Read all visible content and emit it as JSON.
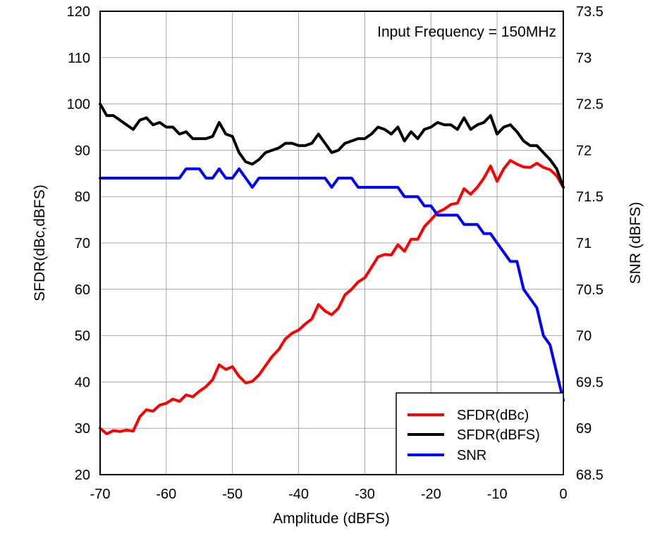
{
  "chart_data": {
    "type": "line",
    "annotation": "Input Frequency = 150MHz",
    "xlabel": "Amplitude (dBFS)",
    "ylabel": "SFDR(dBc,dBFS)",
    "y2label": "SNR (dBFS)",
    "xlim": [
      -70,
      0
    ],
    "ylim": [
      20,
      120
    ],
    "y2lim": [
      68.5,
      73.5
    ],
    "xticks": [
      -70,
      -60,
      -50,
      -40,
      -30,
      -20,
      -10,
      0
    ],
    "yticks": [
      20,
      30,
      40,
      50,
      60,
      70,
      80,
      90,
      100,
      110,
      120
    ],
    "y2ticks": [
      "68.5",
      "69",
      "69.5",
      "70",
      "70.5",
      "71",
      "71.5",
      "72",
      "72.5",
      "73",
      "73.5"
    ],
    "grid": true,
    "legend_position": "bottom-right",
    "x": [
      -70,
      -69,
      -68,
      -67,
      -66,
      -65,
      -64,
      -63,
      -62,
      -61,
      -60,
      -59,
      -58,
      -57,
      -56,
      -55,
      -54,
      -53,
      -52,
      -51,
      -50,
      -49,
      -48,
      -47,
      -46,
      -45,
      -44,
      -43,
      -42,
      -41,
      -40,
      -39,
      -38,
      -37,
      -36,
      -35,
      -34,
      -33,
      -32,
      -31,
      -30,
      -29,
      -28,
      -27,
      -26,
      -25,
      -24,
      -23,
      -22,
      -21,
      -20,
      -19,
      -18,
      -17,
      -16,
      -15,
      -14,
      -13,
      -12,
      -11,
      -10,
      -9,
      -8,
      -7,
      -6,
      -5,
      -4,
      -3,
      -2,
      -1,
      0
    ],
    "series": [
      {
        "name": "SFDR(dBc)",
        "color": "#ff0000",
        "axis": "left",
        "values": [
          30,
          28.8,
          29.5,
          29.3,
          29.6,
          29.4,
          32.5,
          34,
          33.7,
          35,
          35.4,
          36.3,
          35.8,
          37.2,
          36.8,
          38,
          39,
          40.5,
          43.7,
          42.7,
          43.3,
          41.2,
          39.8,
          40.1,
          41.5,
          43.5,
          45.5,
          47,
          49.3,
          50.5,
          51.2,
          52.5,
          53.6,
          56.7,
          55.3,
          54.5,
          55.9,
          58.8,
          60,
          61.6,
          62.5,
          64.7,
          67,
          67.5,
          67.4,
          69.6,
          68.2,
          70.8,
          70.8,
          73.5,
          75,
          76.6,
          77.3,
          78.3,
          78.6,
          81.7,
          80.5,
          82,
          84,
          86.6,
          83.3,
          86,
          87.8,
          87,
          86.4,
          86.3,
          87.2,
          86.3,
          85.8,
          84.5,
          82
        ]
      },
      {
        "name": "SFDR(dBFS)",
        "color": "#000000",
        "axis": "left",
        "values": [
          100,
          97.5,
          97.5,
          96.5,
          95.5,
          94.5,
          96.5,
          97,
          95.5,
          96,
          95,
          95,
          93.5,
          94,
          92.5,
          92.5,
          92.5,
          93,
          96,
          93.5,
          93,
          89.5,
          87.5,
          87,
          88,
          89.5,
          90,
          90.5,
          91.5,
          91.5,
          91,
          91,
          91.5,
          93.5,
          91.5,
          89.5,
          90,
          91.5,
          92,
          92.5,
          92.5,
          93.5,
          95,
          94.5,
          93.5,
          95,
          92,
          94,
          92.5,
          94.5,
          95,
          96,
          95.5,
          95.5,
          94.5,
          97,
          94.5,
          95.5,
          96,
          97.5,
          93.5,
          95,
          95.5,
          94,
          92,
          91,
          91,
          89.5,
          88,
          86,
          82
        ]
      },
      {
        "name": "SNR",
        "color": "#0000ff",
        "axis": "right",
        "values": [
          71.7,
          71.7,
          71.7,
          71.7,
          71.7,
          71.7,
          71.7,
          71.7,
          71.7,
          71.7,
          71.7,
          71.7,
          71.7,
          71.8,
          71.8,
          71.8,
          71.7,
          71.7,
          71.8,
          71.7,
          71.7,
          71.8,
          71.7,
          71.6,
          71.7,
          71.7,
          71.7,
          71.7,
          71.7,
          71.7,
          71.7,
          71.7,
          71.7,
          71.7,
          71.7,
          71.6,
          71.7,
          71.7,
          71.7,
          71.6,
          71.6,
          71.6,
          71.6,
          71.6,
          71.6,
          71.6,
          71.5,
          71.5,
          71.5,
          71.4,
          71.4,
          71.3,
          71.3,
          71.3,
          71.3,
          71.2,
          71.2,
          71.2,
          71.1,
          71.1,
          71,
          70.9,
          70.8,
          70.8,
          70.5,
          70.4,
          70.3,
          70,
          69.9,
          69.6,
          69.3
        ]
      }
    ]
  }
}
